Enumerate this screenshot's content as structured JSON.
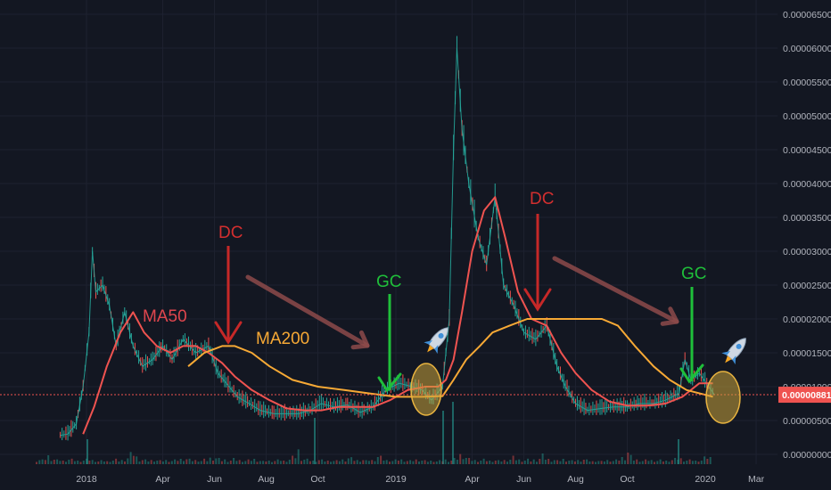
{
  "chart_data": {
    "type": "line",
    "title": "",
    "x_axis": {
      "ticks": [
        "2018",
        "Apr",
        "Jun",
        "Aug",
        "Oct",
        "2019",
        "Apr",
        "Jun",
        "Aug",
        "Oct",
        "2020",
        "Mar"
      ]
    },
    "y_axis": {
      "side": "right",
      "ticks": [
        "0.00006500",
        "0.00006000",
        "0.00005500",
        "0.00005000",
        "0.00004500",
        "0.00004000",
        "0.00003500",
        "0.00003000",
        "0.00002500",
        "0.00002000",
        "0.00001500",
        "0.00001000",
        "0.00000500",
        "0.00000000"
      ],
      "ylim": [
        0,
        6.5e-05
      ]
    },
    "current_price": {
      "label": "0.00000881",
      "value": 8.81e-06,
      "color": "#ef5350"
    },
    "grid": true,
    "series": [
      {
        "name": "",
        "kind": "price",
        "color": "#26a69a",
        "points": [
          [
            "2017-12-01",
            2.8e-06
          ],
          [
            "2017-12-10",
            3e-06
          ],
          [
            "2017-12-20",
            4.5e-06
          ],
          [
            "2017-12-28",
            1e-05
          ],
          [
            "2018-01-04",
            1.8e-05
          ],
          [
            "2018-01-08",
            3e-05
          ],
          [
            "2018-01-12",
            2.4e-05
          ],
          [
            "2018-01-20",
            2.5e-05
          ],
          [
            "2018-01-28",
            2.2e-05
          ],
          [
            "2018-02-05",
            1.6e-05
          ],
          [
            "2018-02-15",
            2.1e-05
          ],
          [
            "2018-02-25",
            1.6e-05
          ],
          [
            "2018-03-08",
            1.3e-05
          ],
          [
            "2018-03-20",
            1.4e-05
          ],
          [
            "2018-04-01",
            1.6e-05
          ],
          [
            "2018-04-12",
            1.4e-05
          ],
          [
            "2018-04-25",
            1.7e-05
          ],
          [
            "2018-05-10",
            1.5e-05
          ],
          [
            "2018-05-25",
            1.6e-05
          ],
          [
            "2018-06-05",
            1.2e-05
          ],
          [
            "2018-06-15",
            1.05e-05
          ],
          [
            "2018-06-28",
            8.5e-06
          ],
          [
            "2018-07-12",
            7.5e-06
          ],
          [
            "2018-07-25",
            6.5e-06
          ],
          [
            "2018-08-10",
            6e-06
          ],
          [
            "2018-08-25",
            6e-06
          ],
          [
            "2018-09-08",
            6e-06
          ],
          [
            "2018-09-22",
            6.5e-06
          ],
          [
            "2018-10-05",
            7.5e-06
          ],
          [
            "2018-10-20",
            7e-06
          ],
          [
            "2018-11-05",
            7.3e-06
          ],
          [
            "2018-11-20",
            6.2e-06
          ],
          [
            "2018-12-05",
            7e-06
          ],
          [
            "2018-12-20",
            9.5e-06
          ],
          [
            "2019-01-05",
            1.05e-05
          ],
          [
            "2019-01-20",
            1e-05
          ],
          [
            "2019-02-01",
            9.5e-06
          ],
          [
            "2019-02-12",
            8e-06
          ],
          [
            "2019-02-25",
            1e-05
          ],
          [
            "2019-03-05",
            2e-05
          ],
          [
            "2019-03-10",
            4.5e-05
          ],
          [
            "2019-03-14",
            6e-05
          ],
          [
            "2019-03-20",
            4.8e-05
          ],
          [
            "2019-03-28",
            4e-05
          ],
          [
            "2019-04-08",
            3.2e-05
          ],
          [
            "2019-04-18",
            2.8e-05
          ],
          [
            "2019-04-28",
            3.8e-05
          ],
          [
            "2019-05-08",
            2.5e-05
          ],
          [
            "2019-05-20",
            2.2e-05
          ],
          [
            "2019-06-01",
            1.8e-05
          ],
          [
            "2019-06-15",
            1.7e-05
          ],
          [
            "2019-06-28",
            1.9e-05
          ],
          [
            "2019-07-10",
            1.3e-05
          ],
          [
            "2019-07-20",
            1e-05
          ],
          [
            "2019-08-01",
            7.5e-06
          ],
          [
            "2019-08-15",
            6.5e-06
          ],
          [
            "2019-09-01",
            6.8e-06
          ],
          [
            "2019-09-15",
            7e-06
          ],
          [
            "2019-10-01",
            7e-06
          ],
          [
            "2019-10-15",
            7.5e-06
          ],
          [
            "2019-11-01",
            7.5e-06
          ],
          [
            "2019-11-15",
            8e-06
          ],
          [
            "2019-12-01",
            9e-06
          ],
          [
            "2019-12-08",
            1.4e-05
          ],
          [
            "2019-12-15",
            1.1e-05
          ],
          [
            "2019-12-25",
            1.2e-05
          ],
          [
            "2020-01-05",
            1e-05
          ],
          [
            "2020-01-12",
            8.8e-06
          ]
        ]
      },
      {
        "name": "MA50",
        "kind": "ma",
        "color": "#ef5350",
        "points": [
          [
            "2017-12-28",
            3e-06
          ],
          [
            "2018-01-10",
            7e-06
          ],
          [
            "2018-01-25",
            1.3e-05
          ],
          [
            "2018-02-10",
            1.8e-05
          ],
          [
            "2018-02-25",
            2.1e-05
          ],
          [
            "2018-03-10",
            1.8e-05
          ],
          [
            "2018-03-25",
            1.6e-05
          ],
          [
            "2018-04-10",
            1.5e-05
          ],
          [
            "2018-04-25",
            1.6e-05
          ],
          [
            "2018-05-10",
            1.6e-05
          ],
          [
            "2018-05-25",
            1.5e-05
          ],
          [
            "2018-06-10",
            1.35e-05
          ],
          [
            "2018-06-25",
            1.15e-05
          ],
          [
            "2018-07-15",
            9.5e-06
          ],
          [
            "2018-08-05",
            8e-06
          ],
          [
            "2018-08-25",
            6.8e-06
          ],
          [
            "2018-09-15",
            6.5e-06
          ],
          [
            "2018-10-05",
            6.5e-06
          ],
          [
            "2018-10-25",
            7e-06
          ],
          [
            "2018-11-15",
            7e-06
          ],
          [
            "2018-12-05",
            7e-06
          ],
          [
            "2018-12-25",
            8e-06
          ],
          [
            "2019-01-15",
            9.5e-06
          ],
          [
            "2019-02-05",
            1e-05
          ],
          [
            "2019-02-20",
            1e-05
          ],
          [
            "2019-03-01",
            1.1e-05
          ],
          [
            "2019-03-10",
            1.4e-05
          ],
          [
            "2019-03-20",
            2.1e-05
          ],
          [
            "2019-04-01",
            3e-05
          ],
          [
            "2019-04-15",
            3.6e-05
          ],
          [
            "2019-04-28",
            3.8e-05
          ],
          [
            "2019-05-10",
            3.2e-05
          ],
          [
            "2019-05-25",
            2.4e-05
          ],
          [
            "2019-06-10",
            2e-05
          ],
          [
            "2019-06-28",
            1.9e-05
          ],
          [
            "2019-07-15",
            1.5e-05
          ],
          [
            "2019-08-01",
            1.2e-05
          ],
          [
            "2019-08-20",
            9.5e-06
          ],
          [
            "2019-09-10",
            7.8e-06
          ],
          [
            "2019-10-01",
            7.2e-06
          ],
          [
            "2019-10-25",
            7.2e-06
          ],
          [
            "2019-11-15",
            7.5e-06
          ],
          [
            "2019-12-05",
            8.5e-06
          ],
          [
            "2019-12-25",
            1.05e-05
          ],
          [
            "2020-01-10",
            1.05e-05
          ]
        ]
      },
      {
        "name": "MA200",
        "kind": "ma",
        "color": "#f7a935",
        "points": [
          [
            "2018-05-01",
            1.3e-05
          ],
          [
            "2018-05-20",
            1.5e-05
          ],
          [
            "2018-06-10",
            1.6e-05
          ],
          [
            "2018-06-25",
            1.6e-05
          ],
          [
            "2018-07-15",
            1.5e-05
          ],
          [
            "2018-08-05",
            1.3e-05
          ],
          [
            "2018-09-01",
            1.1e-05
          ],
          [
            "2018-10-01",
            1e-05
          ],
          [
            "2018-11-01",
            9.5e-06
          ],
          [
            "2018-12-01",
            9e-06
          ],
          [
            "2019-01-01",
            8.5e-06
          ],
          [
            "2019-02-01",
            8.5e-06
          ],
          [
            "2019-02-25",
            8.6e-06
          ],
          [
            "2019-03-10",
            1.1e-05
          ],
          [
            "2019-03-25",
            1.4e-05
          ],
          [
            "2019-04-10",
            1.6e-05
          ],
          [
            "2019-04-25",
            1.8e-05
          ],
          [
            "2019-05-15",
            1.9e-05
          ],
          [
            "2019-06-05",
            2e-05
          ],
          [
            "2019-07-01",
            2e-05
          ],
          [
            "2019-08-01",
            2e-05
          ],
          [
            "2019-09-01",
            2e-05
          ],
          [
            "2019-09-20",
            1.9e-05
          ],
          [
            "2019-10-10",
            1.6e-05
          ],
          [
            "2019-11-01",
            1.3e-05
          ],
          [
            "2019-11-20",
            1.1e-05
          ],
          [
            "2019-12-10",
            9.5e-06
          ],
          [
            "2020-01-10",
            8.5e-06
          ]
        ]
      }
    ],
    "annotations": [
      {
        "text": "MA50",
        "color": "#e0464e"
      },
      {
        "text": "MA200",
        "color": "#f7a935"
      },
      {
        "text": "DC",
        "color": "#d32f2f"
      },
      {
        "text": "GC",
        "color": "#1fbf3a"
      },
      {
        "text": "DC",
        "color": "#d32f2f"
      },
      {
        "text": "GC",
        "color": "#1fbf3a"
      }
    ],
    "icons": [
      "rocket-icon",
      "rocket-icon",
      "ellipse-highlight",
      "ellipse-highlight",
      "trend-arrow",
      "trend-arrow",
      "down-arrow",
      "down-arrow",
      "check-mark",
      "check-mark"
    ]
  }
}
